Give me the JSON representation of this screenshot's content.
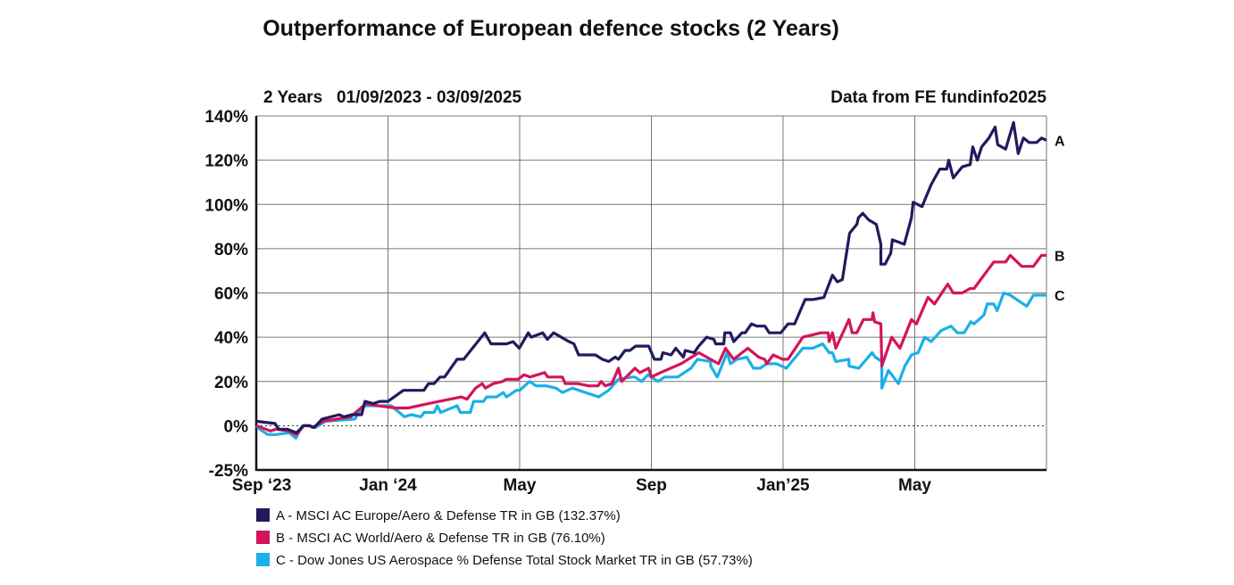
{
  "chart_data": {
    "type": "line",
    "title": "Outperformance of European defence stocks (2 Years)",
    "subtitle": "2 Years   01/09/2023 - 03/09/2025",
    "source": "Data from FE fundinfo2025",
    "xlabel": "",
    "ylabel": "",
    "x_unit": "months since 01/09/2023",
    "xlim": [
      0,
      24
    ],
    "ylim": [
      -25,
      140
    ],
    "grid": true,
    "legend_position": "bottom-left",
    "y_ticks": [
      {
        "value": -25,
        "label": "-25%"
      },
      {
        "value": 0,
        "label": "0%"
      },
      {
        "value": 20,
        "label": "20%"
      },
      {
        "value": 40,
        "label": "40%"
      },
      {
        "value": 60,
        "label": "60%"
      },
      {
        "value": 80,
        "label": "80%"
      },
      {
        "value": 100,
        "label": "100%"
      },
      {
        "value": 120,
        "label": "120%"
      },
      {
        "value": 140,
        "label": "140%"
      }
    ],
    "x_ticks": [
      {
        "value": 0,
        "label": "Sep ‘23"
      },
      {
        "value": 4,
        "label": "Jan ‘24"
      },
      {
        "value": 8,
        "label": "May"
      },
      {
        "value": 12,
        "label": "Sep"
      },
      {
        "value": 16,
        "label": "Jan’25"
      },
      {
        "value": 20,
        "label": "May"
      }
    ],
    "series": [
      {
        "key": "A",
        "name": "A - MSCI AC Europe/Aero & Defense TR in GB (132.37%)",
        "color": "#221a5e",
        "points": [
          [
            0,
            2
          ],
          [
            0.57,
            1
          ],
          [
            0.68,
            -2
          ],
          [
            0.95,
            -2
          ],
          [
            1.22,
            -4
          ],
          [
            1.44,
            0
          ],
          [
            1.62,
            0
          ],
          [
            1.76,
            -1
          ],
          [
            2.0,
            3
          ],
          [
            2.52,
            5
          ],
          [
            2.66,
            4
          ],
          [
            2.9,
            5
          ],
          [
            3.2,
            5
          ],
          [
            3.3,
            11
          ],
          [
            3.55,
            10
          ],
          [
            3.75,
            11
          ],
          [
            4.0,
            11
          ],
          [
            4.47,
            16
          ],
          [
            5.09,
            16
          ],
          [
            5.23,
            19
          ],
          [
            5.4,
            19
          ],
          [
            5.58,
            22
          ],
          [
            5.72,
            22
          ],
          [
            6.1,
            30
          ],
          [
            6.3,
            30
          ],
          [
            6.94,
            42
          ],
          [
            7.13,
            37
          ],
          [
            7.6,
            37
          ],
          [
            7.8,
            38
          ],
          [
            7.99,
            35
          ],
          [
            8.26,
            42
          ],
          [
            8.35,
            40
          ],
          [
            8.7,
            42
          ],
          [
            8.84,
            39
          ],
          [
            9.03,
            42
          ],
          [
            9.5,
            38
          ],
          [
            9.65,
            37
          ],
          [
            9.79,
            32
          ],
          [
            9.97,
            32
          ],
          [
            10.3,
            32
          ],
          [
            10.51,
            30
          ],
          [
            10.7,
            29
          ],
          [
            10.9,
            31
          ],
          [
            11.0,
            30
          ],
          [
            11.2,
            34
          ],
          [
            11.35,
            34
          ],
          [
            11.52,
            36
          ],
          [
            11.92,
            36
          ],
          [
            12.09,
            30
          ],
          [
            12.29,
            30
          ],
          [
            12.35,
            33
          ],
          [
            12.6,
            32
          ],
          [
            12.74,
            35
          ],
          [
            12.97,
            31
          ],
          [
            13.03,
            34
          ],
          [
            13.3,
            33
          ],
          [
            13.44,
            36
          ],
          [
            13.68,
            40
          ],
          [
            13.9,
            39
          ],
          [
            13.95,
            37
          ],
          [
            14.2,
            37
          ],
          [
            14.23,
            42
          ],
          [
            14.4,
            42
          ],
          [
            14.5,
            38
          ],
          [
            14.75,
            42
          ],
          [
            14.85,
            42
          ],
          [
            15.04,
            46
          ],
          [
            15.2,
            45
          ],
          [
            15.45,
            45
          ],
          [
            15.58,
            42
          ],
          [
            15.93,
            42
          ],
          [
            16.15,
            46
          ],
          [
            16.35,
            46
          ],
          [
            16.67,
            57
          ],
          [
            16.9,
            57
          ],
          [
            17.24,
            58
          ],
          [
            17.5,
            68
          ],
          [
            17.65,
            65
          ],
          [
            17.8,
            66
          ],
          [
            18.02,
            87
          ],
          [
            18.24,
            91
          ],
          [
            18.29,
            94
          ],
          [
            18.42,
            96
          ],
          [
            18.6,
            93
          ],
          [
            18.83,
            91
          ],
          [
            18.97,
            82
          ],
          [
            18.97,
            73
          ],
          [
            19.1,
            73
          ],
          [
            19.27,
            78
          ],
          [
            19.32,
            84
          ],
          [
            19.68,
            82
          ],
          [
            19.9,
            94
          ],
          [
            19.95,
            101
          ],
          [
            20.22,
            99
          ],
          [
            20.5,
            109
          ],
          [
            20.76,
            116
          ],
          [
            20.97,
            116
          ],
          [
            21.03,
            120
          ],
          [
            21.17,
            112
          ],
          [
            21.44,
            117
          ],
          [
            21.68,
            118
          ],
          [
            21.76,
            126
          ],
          [
            21.9,
            120
          ],
          [
            22.03,
            126
          ],
          [
            22.25,
            130
          ],
          [
            22.44,
            135
          ],
          [
            22.52,
            127
          ],
          [
            22.76,
            125
          ],
          [
            23.0,
            137
          ],
          [
            23.14,
            123
          ],
          [
            23.3,
            130
          ],
          [
            23.47,
            128
          ],
          [
            23.7,
            128
          ],
          [
            23.85,
            130
          ],
          [
            24.0,
            129
          ]
        ]
      },
      {
        "key": "B",
        "name": "B - MSCI AC World/Aero & Defense TR in GB (76.10%)",
        "color": "#d4145a",
        "points": [
          [
            0,
            0
          ],
          [
            0.43,
            -3
          ],
          [
            0.6,
            -2
          ],
          [
            0.98,
            -3
          ],
          [
            1.22,
            -5
          ],
          [
            1.44,
            0
          ],
          [
            1.62,
            0
          ],
          [
            1.71,
            -1
          ],
          [
            2.03,
            2
          ],
          [
            2.87,
            4
          ],
          [
            3.33,
            10
          ],
          [
            3.7,
            9
          ],
          [
            4.23,
            8
          ],
          [
            4.61,
            8
          ],
          [
            5.23,
            10
          ],
          [
            6.23,
            13
          ],
          [
            6.4,
            12
          ],
          [
            6.66,
            17
          ],
          [
            6.86,
            19
          ],
          [
            6.96,
            17
          ],
          [
            7.2,
            19
          ],
          [
            7.48,
            20
          ],
          [
            7.59,
            21
          ],
          [
            7.95,
            21
          ],
          [
            8.13,
            23
          ],
          [
            8.31,
            22
          ],
          [
            8.76,
            24
          ],
          [
            8.85,
            22
          ],
          [
            9.3,
            22
          ],
          [
            9.38,
            19
          ],
          [
            9.76,
            19
          ],
          [
            10.1,
            18
          ],
          [
            10.38,
            18
          ],
          [
            10.47,
            20
          ],
          [
            10.6,
            18
          ],
          [
            10.8,
            19
          ],
          [
            11.0,
            26
          ],
          [
            11.1,
            20
          ],
          [
            11.5,
            26
          ],
          [
            11.65,
            24
          ],
          [
            11.92,
            26
          ],
          [
            12.0,
            22
          ],
          [
            12.28,
            24
          ],
          [
            12.9,
            28
          ],
          [
            13.44,
            33
          ],
          [
            14.04,
            28
          ],
          [
            14.25,
            35
          ],
          [
            14.5,
            30
          ],
          [
            14.93,
            35
          ],
          [
            15.26,
            31
          ],
          [
            15.44,
            30
          ],
          [
            15.5,
            28
          ],
          [
            15.7,
            32
          ],
          [
            15.99,
            30
          ],
          [
            16.15,
            30
          ],
          [
            16.6,
            40
          ],
          [
            17.15,
            42
          ],
          [
            17.37,
            42
          ],
          [
            17.4,
            38
          ],
          [
            17.5,
            42
          ],
          [
            17.6,
            35
          ],
          [
            18.0,
            48
          ],
          [
            18.1,
            42
          ],
          [
            18.24,
            42
          ],
          [
            18.44,
            48
          ],
          [
            18.7,
            48
          ],
          [
            18.73,
            51
          ],
          [
            18.78,
            47
          ],
          [
            18.97,
            46
          ],
          [
            19.0,
            27
          ],
          [
            19.3,
            40
          ],
          [
            19.55,
            35
          ],
          [
            19.9,
            48
          ],
          [
            20.05,
            46
          ],
          [
            20.4,
            58
          ],
          [
            20.6,
            55
          ],
          [
            21.0,
            64
          ],
          [
            21.17,
            60
          ],
          [
            21.44,
            60
          ],
          [
            21.68,
            62
          ],
          [
            21.8,
            62
          ],
          [
            22.2,
            70
          ],
          [
            22.4,
            74
          ],
          [
            22.76,
            74
          ],
          [
            22.9,
            77
          ],
          [
            23.25,
            72
          ],
          [
            23.6,
            72
          ],
          [
            23.85,
            77
          ],
          [
            24.0,
            77
          ]
        ]
      },
      {
        "key": "C",
        "name": "C - Dow Jones US Aerospace % Defense Total Stock Market TR in GB (57.73%)",
        "color": "#1ab0e8",
        "points": [
          [
            0,
            0
          ],
          [
            0.1,
            -2
          ],
          [
            0.35,
            -5
          ],
          [
            0.6,
            -5
          ],
          [
            1.0,
            -4
          ],
          [
            1.2,
            -7
          ],
          [
            1.4,
            0
          ],
          [
            1.6,
            0
          ],
          [
            1.8,
            -1
          ],
          [
            2.1,
            2
          ],
          [
            3.0,
            3
          ],
          [
            3.1,
            6
          ],
          [
            3.3,
            9
          ],
          [
            4.1,
            9
          ],
          [
            4.5,
            4
          ],
          [
            4.7,
            5
          ],
          [
            5.0,
            4
          ],
          [
            5.1,
            6
          ],
          [
            5.4,
            6
          ],
          [
            5.5,
            9
          ],
          [
            5.6,
            6
          ],
          [
            6.1,
            9
          ],
          [
            6.2,
            6
          ],
          [
            6.5,
            6
          ],
          [
            6.6,
            11
          ],
          [
            6.9,
            11
          ],
          [
            7.0,
            13
          ],
          [
            7.3,
            13
          ],
          [
            7.5,
            15
          ],
          [
            7.6,
            13
          ],
          [
            7.9,
            16
          ],
          [
            8.0,
            16
          ],
          [
            8.3,
            20
          ],
          [
            8.5,
            18
          ],
          [
            8.8,
            18
          ],
          [
            9.1,
            17
          ],
          [
            9.3,
            15
          ],
          [
            9.6,
            17
          ],
          [
            9.8,
            16
          ],
          [
            10.4,
            13
          ],
          [
            10.7,
            16
          ],
          [
            11.0,
            21
          ],
          [
            11.4,
            22
          ],
          [
            11.5,
            22
          ],
          [
            11.7,
            20
          ],
          [
            11.9,
            23
          ],
          [
            12.2,
            20
          ],
          [
            12.4,
            22
          ],
          [
            12.8,
            22
          ],
          [
            13.2,
            26
          ],
          [
            13.4,
            30
          ],
          [
            13.8,
            29
          ],
          [
            13.8,
            27
          ],
          [
            14.0,
            22
          ],
          [
            14.3,
            33
          ],
          [
            14.4,
            28
          ],
          [
            14.6,
            30
          ],
          [
            14.9,
            31
          ],
          [
            15.1,
            26
          ],
          [
            15.3,
            26
          ],
          [
            15.5,
            28
          ],
          [
            15.8,
            28
          ],
          [
            16.1,
            26
          ],
          [
            16.6,
            35
          ],
          [
            16.9,
            35
          ],
          [
            17.2,
            37
          ],
          [
            17.4,
            33
          ],
          [
            17.5,
            33
          ],
          [
            17.6,
            29
          ],
          [
            18.0,
            30
          ],
          [
            18.0,
            27
          ],
          [
            18.3,
            26
          ],
          [
            18.7,
            33
          ],
          [
            18.8,
            31
          ],
          [
            19.0,
            29
          ],
          [
            19.0,
            17
          ],
          [
            19.2,
            25
          ],
          [
            19.5,
            19
          ],
          [
            19.7,
            27
          ],
          [
            19.9,
            32
          ],
          [
            20.1,
            33
          ],
          [
            20.3,
            40
          ],
          [
            20.5,
            38
          ],
          [
            20.8,
            43
          ],
          [
            21.1,
            45
          ],
          [
            21.3,
            42
          ],
          [
            21.5,
            42
          ],
          [
            21.7,
            47
          ],
          [
            21.8,
            46
          ],
          [
            22.1,
            50
          ],
          [
            22.2,
            55
          ],
          [
            22.4,
            55
          ],
          [
            22.5,
            52
          ],
          [
            22.7,
            60
          ],
          [
            22.9,
            59
          ],
          [
            23.4,
            54
          ],
          [
            23.6,
            59
          ],
          [
            24.0,
            59
          ]
        ]
      }
    ]
  }
}
